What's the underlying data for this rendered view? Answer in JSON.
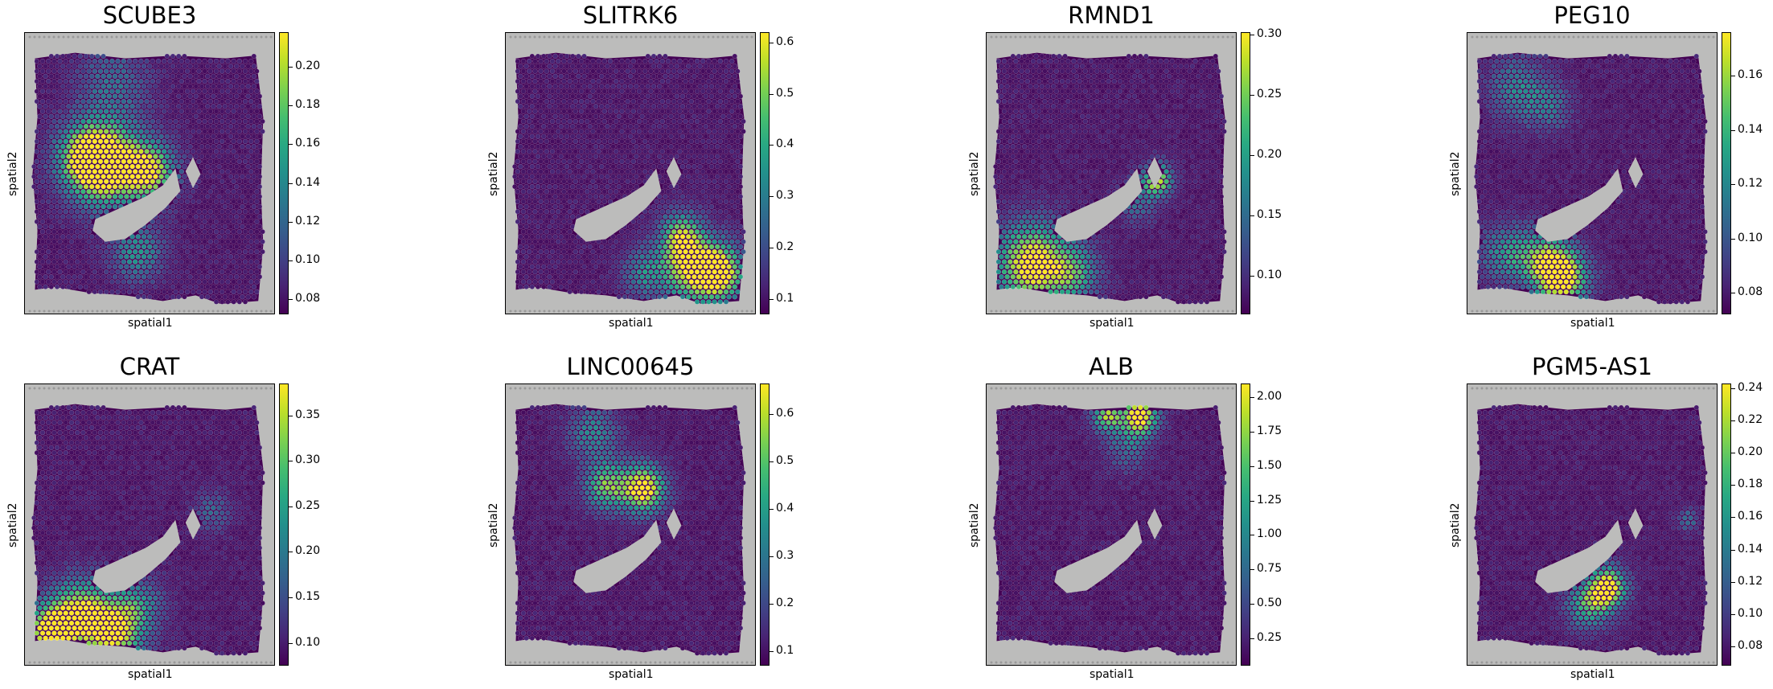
{
  "chart_data": [
    {
      "type": "heatmap",
      "title": "SCUBE3",
      "xlabel": "spatial1",
      "ylabel": "spatial2",
      "colorbar": {
        "range": [
          0.072,
          0.218
        ],
        "ticks": [
          "0.08",
          "0.10",
          "0.12",
          "0.14",
          "0.16",
          "0.18",
          "0.20"
        ]
      },
      "hotspots": [
        {
          "x": 0.33,
          "y": 0.47,
          "v": 1.0,
          "s": 0.1
        },
        {
          "x": 0.5,
          "y": 0.49,
          "v": 0.8,
          "s": 0.07
        },
        {
          "x": 0.24,
          "y": 0.44,
          "v": 0.7,
          "s": 0.08
        },
        {
          "x": 0.45,
          "y": 0.78,
          "v": 0.45,
          "s": 0.07
        },
        {
          "x": 0.35,
          "y": 0.18,
          "v": 0.3,
          "s": 0.1
        }
      ]
    },
    {
      "type": "heatmap",
      "title": "SLITRK6",
      "xlabel": "spatial1",
      "ylabel": "spatial2",
      "colorbar": {
        "range": [
          0.07,
          0.62
        ],
        "ticks": [
          "0.1",
          "0.2",
          "0.3",
          "0.4",
          "0.5",
          "0.6"
        ]
      },
      "hotspots": [
        {
          "x": 0.85,
          "y": 0.85,
          "v": 1.0,
          "s": 0.07
        },
        {
          "x": 0.73,
          "y": 0.84,
          "v": 0.75,
          "s": 0.08
        },
        {
          "x": 0.7,
          "y": 0.72,
          "v": 0.7,
          "s": 0.06
        },
        {
          "x": 0.55,
          "y": 0.85,
          "v": 0.4,
          "s": 0.06
        }
      ]
    },
    {
      "type": "heatmap",
      "title": "RMND1",
      "xlabel": "spatial1",
      "ylabel": "spatial2",
      "colorbar": {
        "range": [
          0.068,
          0.302
        ],
        "ticks": [
          "0.10",
          "0.15",
          "0.20",
          "0.25",
          "0.30"
        ]
      },
      "hotspots": [
        {
          "x": 0.18,
          "y": 0.82,
          "v": 1.0,
          "s": 0.1
        },
        {
          "x": 0.68,
          "y": 0.52,
          "v": 0.9,
          "s": 0.04
        },
        {
          "x": 0.35,
          "y": 0.85,
          "v": 0.5,
          "s": 0.07
        },
        {
          "x": 0.6,
          "y": 0.6,
          "v": 0.3,
          "s": 0.05
        }
      ]
    },
    {
      "type": "heatmap",
      "title": "PEG10",
      "xlabel": "spatial1",
      "ylabel": "spatial2",
      "colorbar": {
        "range": [
          0.072,
          0.176
        ],
        "ticks": [
          "0.08",
          "0.10",
          "0.12",
          "0.14",
          "0.16"
        ]
      },
      "hotspots": [
        {
          "x": 0.38,
          "y": 0.87,
          "v": 1.0,
          "s": 0.07
        },
        {
          "x": 0.3,
          "y": 0.8,
          "v": 0.6,
          "s": 0.07
        },
        {
          "x": 0.15,
          "y": 0.78,
          "v": 0.45,
          "s": 0.07
        },
        {
          "x": 0.2,
          "y": 0.2,
          "v": 0.4,
          "s": 0.08
        },
        {
          "x": 0.33,
          "y": 0.26,
          "v": 0.3,
          "s": 0.06
        }
      ]
    },
    {
      "type": "heatmap",
      "title": "CRAT",
      "xlabel": "spatial1",
      "ylabel": "spatial2",
      "colorbar": {
        "range": [
          0.075,
          0.385
        ],
        "ticks": [
          "0.10",
          "0.15",
          "0.20",
          "0.25",
          "0.30",
          "0.35"
        ]
      },
      "hotspots": [
        {
          "x": 0.1,
          "y": 0.88,
          "v": 1.0,
          "s": 0.07
        },
        {
          "x": 0.35,
          "y": 0.88,
          "v": 0.9,
          "s": 0.08
        },
        {
          "x": 0.22,
          "y": 0.8,
          "v": 0.75,
          "s": 0.08
        },
        {
          "x": 0.45,
          "y": 0.78,
          "v": 0.4,
          "s": 0.07
        },
        {
          "x": 0.75,
          "y": 0.45,
          "v": 0.25,
          "s": 0.05
        }
      ]
    },
    {
      "type": "heatmap",
      "title": "LINC00645",
      "xlabel": "spatial1",
      "ylabel": "spatial2",
      "colorbar": {
        "range": [
          0.07,
          0.665
        ],
        "ticks": [
          "0.1",
          "0.2",
          "0.3",
          "0.4",
          "0.5",
          "0.6"
        ]
      },
      "hotspots": [
        {
          "x": 0.55,
          "y": 0.37,
          "v": 1.0,
          "s": 0.06
        },
        {
          "x": 0.4,
          "y": 0.36,
          "v": 0.7,
          "s": 0.06
        },
        {
          "x": 0.35,
          "y": 0.17,
          "v": 0.4,
          "s": 0.07
        }
      ]
    },
    {
      "type": "heatmap",
      "title": "ALB",
      "xlabel": "spatial1",
      "ylabel": "spatial2",
      "colorbar": {
        "range": [
          0.05,
          2.1
        ],
        "ticks": [
          "0.25",
          "0.50",
          "0.75",
          "1.00",
          "1.25",
          "1.50",
          "1.75",
          "2.00"
        ]
      },
      "hotspots": [
        {
          "x": 0.61,
          "y": 0.11,
          "v": 1.0,
          "s": 0.05
        },
        {
          "x": 0.48,
          "y": 0.11,
          "v": 0.75,
          "s": 0.04
        },
        {
          "x": 0.56,
          "y": 0.22,
          "v": 0.3,
          "s": 0.06
        }
      ]
    },
    {
      "type": "heatmap",
      "title": "PGM5-AS1",
      "xlabel": "spatial1",
      "ylabel": "spatial2",
      "colorbar": {
        "range": [
          0.068,
          0.243
        ],
        "ticks": [
          "0.08",
          "0.10",
          "0.12",
          "0.14",
          "0.16",
          "0.18",
          "0.20",
          "0.22",
          "0.24"
        ]
      },
      "hotspots": [
        {
          "x": 0.56,
          "y": 0.72,
          "v": 1.0,
          "s": 0.05
        },
        {
          "x": 0.48,
          "y": 0.78,
          "v": 0.6,
          "s": 0.06
        },
        {
          "x": 0.88,
          "y": 0.48,
          "v": 0.3,
          "s": 0.03
        }
      ]
    }
  ]
}
